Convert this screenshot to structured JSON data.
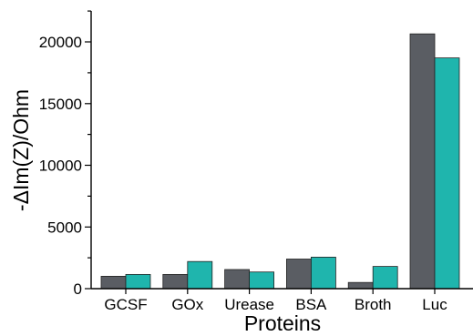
{
  "chart_data": {
    "type": "bar",
    "categories": [
      "GCSF",
      "GOx",
      "Urease",
      "BSA",
      "Broth",
      "Luc"
    ],
    "series": [
      {
        "values": [
          1000,
          1150,
          1550,
          2400,
          500,
          20650
        ],
        "color": "#5a5d63"
      },
      {
        "values": [
          1150,
          2200,
          1350,
          2550,
          1800,
          18700
        ],
        "color": "#1fb5ad"
      }
    ],
    "title": "",
    "xlabel": "Proteins",
    "ylabel": "-ΔIm(Z)/Ohm",
    "ylim": [
      0,
      23000
    ],
    "yticks": [
      0,
      5000,
      10000,
      15000,
      20000
    ],
    "grid": false,
    "legend": "none"
  }
}
